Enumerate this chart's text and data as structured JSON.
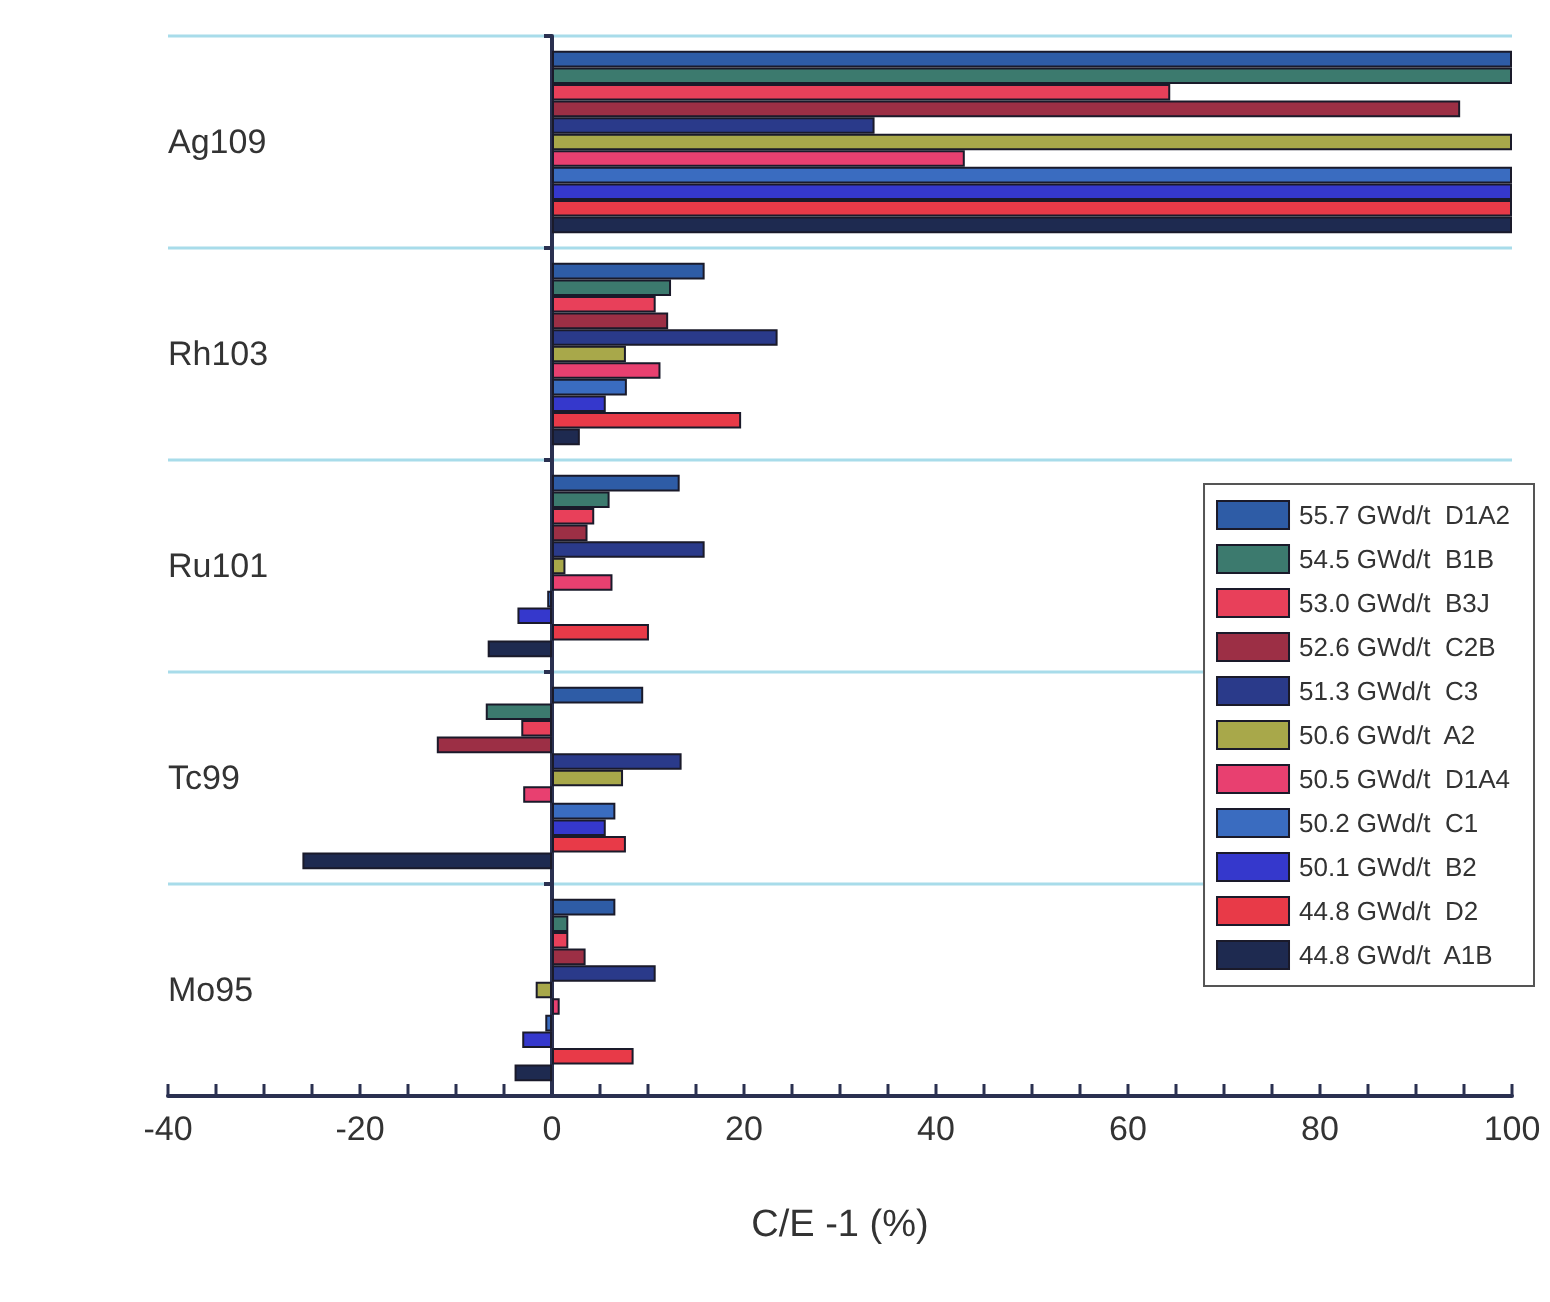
{
  "chart_data": {
    "type": "bar",
    "orientation": "horizontal",
    "xlabel": "C/E -1 (%)",
    "categories": [
      "Ag109",
      "Rh103",
      "Ru101",
      "Tc99",
      "Mo95"
    ],
    "series": [
      {
        "name": "55.7 GWd/t  D1A2",
        "color": "#2e5ca6",
        "values": [
          100,
          15.9,
          13.3,
          9.5,
          6.6
        ]
      },
      {
        "name": "54.5 GWd/t  B1B",
        "color": "#3c7a6e",
        "values": [
          100,
          12.4,
          6.0,
          -6.9,
          1.7
        ]
      },
      {
        "name": "53.0 GWd/t  B3J",
        "color": "#e8405a",
        "values": [
          64.4,
          10.8,
          4.4,
          -3.2,
          1.7
        ]
      },
      {
        "name": "52.6 GWd/t  C2B",
        "color": "#9c2f45",
        "values": [
          94.6,
          12.1,
          3.7,
          -12.0,
          3.5
        ]
      },
      {
        "name": "51.3 GWd/t  C3",
        "color": "#2a3a8a",
        "values": [
          33.6,
          23.5,
          15.9,
          13.5,
          10.8
        ]
      },
      {
        "name": "50.6 GWd/t  A2",
        "color": "#a8a84a",
        "values": [
          100,
          7.7,
          1.4,
          7.4,
          -1.7
        ]
      },
      {
        "name": "50.5 GWd/t  D1A4",
        "color": "#e84070",
        "values": [
          43.0,
          11.3,
          6.3,
          -3.0,
          0.8
        ]
      },
      {
        "name": "50.2 GWd/t  C1",
        "color": "#3a6cc0",
        "values": [
          100,
          7.8,
          -0.5,
          6.6,
          -0.7
        ]
      },
      {
        "name": "50.1 GWd/t  B2",
        "color": "#3538cc",
        "values": [
          100,
          5.6,
          -3.6,
          5.6,
          -3.1
        ]
      },
      {
        "name": "44.8 GWd/t  D2",
        "color": "#e83a48",
        "values": [
          100,
          19.7,
          10.1,
          7.7,
          8.5
        ]
      },
      {
        "name": "44.8 GWd/t  A1B",
        "color": "#1e2a50",
        "values": [
          100,
          2.9,
          -6.7,
          -26.0,
          -3.9
        ]
      }
    ],
    "xlim": [
      -40,
      100
    ],
    "xticks": [
      -40,
      -20,
      0,
      20,
      40,
      60,
      80,
      100
    ],
    "grid": "y",
    "legend": "right"
  }
}
